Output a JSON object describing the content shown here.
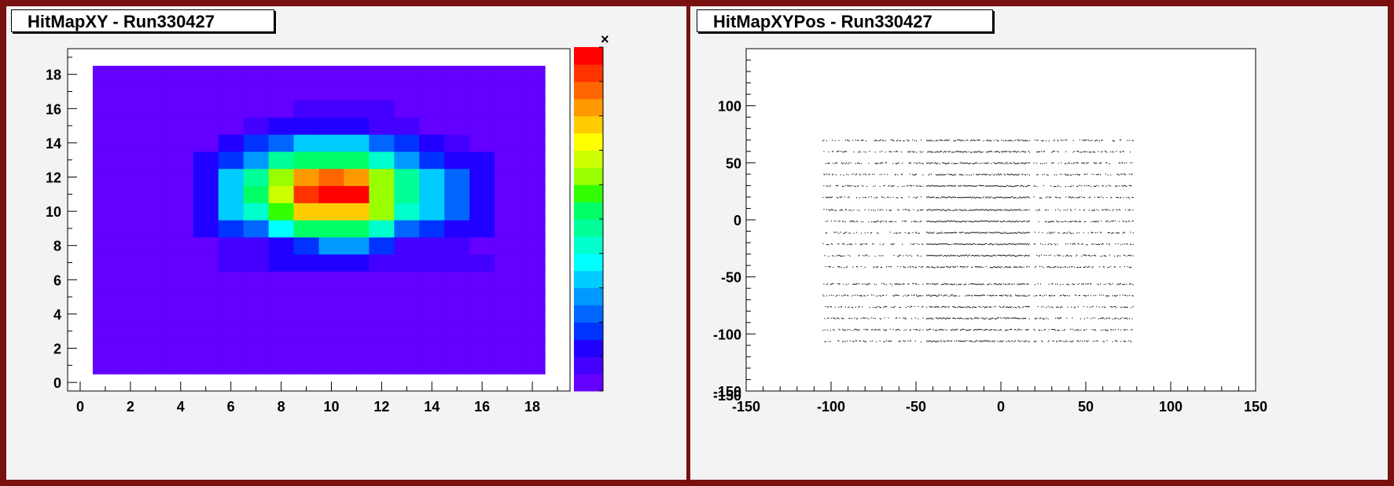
{
  "chart_data": [
    {
      "type": "heatmap",
      "title": "HitMapXY - Run330427",
      "xlim": [
        -0.5,
        19.5
      ],
      "ylim": [
        -0.5,
        19.5
      ],
      "x_ticks": [
        0,
        2,
        4,
        6,
        8,
        10,
        12,
        14,
        16,
        18
      ],
      "y_ticks": [
        0,
        2,
        4,
        6,
        8,
        10,
        12,
        14,
        16,
        18
      ],
      "x_bins": [
        1,
        18
      ],
      "y_bins": [
        1,
        18
      ],
      "grid": false,
      "legend": "color palette on right, labels clipped",
      "palette": [
        "#6300ff",
        "#4400ff",
        "#2200ff",
        "#0033ff",
        "#0066ff",
        "#0099ff",
        "#00ccff",
        "#00ffff",
        "#00ffcc",
        "#00ff99",
        "#00ff66",
        "#33ff00",
        "#99ff00",
        "#ccff00",
        "#ffff00",
        "#ffcc00",
        "#ff9900",
        "#ff6600",
        "#ff3300",
        "#ff0000"
      ],
      "z_levels": 20,
      "z_values": [
        [
          0,
          0,
          0,
          0,
          0,
          0,
          0,
          0,
          0,
          0,
          0,
          0,
          0,
          0,
          0,
          0,
          0,
          0
        ],
        [
          0,
          0,
          0,
          0,
          0,
          0,
          0,
          0,
          0,
          0,
          0,
          0,
          0,
          0,
          0,
          0,
          0,
          0
        ],
        [
          0,
          0,
          0,
          0,
          0,
          0,
          0,
          0,
          0,
          0,
          0,
          0,
          0,
          0,
          0,
          0,
          0,
          0
        ],
        [
          0,
          0,
          0,
          0,
          0,
          0,
          0,
          0,
          0,
          0,
          0,
          0,
          0,
          0,
          0,
          0,
          0,
          0
        ],
        [
          0,
          0,
          0,
          0,
          0,
          0,
          0,
          0,
          0,
          0,
          0,
          0,
          0,
          0,
          0,
          0,
          0,
          0
        ],
        [
          0,
          0,
          0,
          0,
          0,
          0,
          0,
          0,
          0,
          0,
          0,
          0,
          0,
          0,
          0,
          0,
          0,
          0
        ],
        [
          0,
          0,
          0,
          0,
          0,
          1,
          1,
          2,
          2,
          2,
          2,
          1,
          1,
          1,
          1,
          1,
          0,
          0
        ],
        [
          0,
          0,
          0,
          0,
          0,
          1,
          1,
          2,
          3,
          5,
          5,
          3,
          1,
          1,
          1,
          0,
          0,
          0
        ],
        [
          0,
          0,
          0,
          0,
          2,
          3,
          4,
          7,
          10,
          10,
          10,
          8,
          4,
          3,
          2,
          2,
          0,
          0
        ],
        [
          0,
          0,
          0,
          0,
          2,
          6,
          8,
          11,
          15,
          15,
          15,
          12,
          8,
          6,
          4,
          2,
          0,
          0
        ],
        [
          0,
          0,
          0,
          0,
          2,
          6,
          10,
          13,
          18,
          19,
          19,
          12,
          9,
          6,
          4,
          2,
          0,
          0
        ],
        [
          0,
          0,
          0,
          0,
          2,
          6,
          9,
          12,
          16,
          17,
          16,
          12,
          9,
          6,
          4,
          2,
          0,
          0
        ],
        [
          0,
          0,
          0,
          0,
          2,
          3,
          5,
          9,
          10,
          10,
          10,
          8,
          5,
          3,
          2,
          2,
          0,
          0
        ],
        [
          0,
          0,
          0,
          0,
          0,
          2,
          3,
          4,
          6,
          6,
          6,
          4,
          3,
          2,
          1,
          0,
          0,
          0
        ],
        [
          0,
          0,
          0,
          0,
          0,
          0,
          1,
          2,
          2,
          2,
          2,
          1,
          1,
          0,
          0,
          0,
          0,
          0
        ],
        [
          0,
          0,
          0,
          0,
          0,
          0,
          0,
          0,
          1,
          1,
          1,
          1,
          0,
          0,
          0,
          0,
          0,
          0
        ],
        [
          0,
          0,
          0,
          0,
          0,
          0,
          0,
          0,
          0,
          0,
          0,
          0,
          0,
          0,
          0,
          0,
          0,
          0
        ],
        [
          0,
          0,
          0,
          0,
          0,
          0,
          0,
          0,
          0,
          0,
          0,
          0,
          0,
          0,
          0,
          0,
          0,
          0
        ]
      ]
    },
    {
      "type": "scatter",
      "title": "HitMapXYPos - Run330427",
      "xlim": [
        -150,
        150
      ],
      "ylim": [
        -150,
        150
      ],
      "x_ticks": [
        -150,
        -100,
        -50,
        0,
        50,
        100,
        150
      ],
      "y_ticks": [
        -150,
        -100,
        -50,
        0,
        50,
        100
      ],
      "grid": false,
      "color": "#000000",
      "hit_region": {
        "x": [
          -105,
          78
        ],
        "y": [
          -105,
          70
        ]
      },
      "row_y": [
        70,
        60,
        50,
        40,
        30,
        20,
        9,
        -1,
        -11,
        -21,
        -31,
        -41,
        -56,
        -66,
        -76,
        -86,
        -96,
        -106
      ],
      "x_gaps": [
        [
          -46,
          -44
        ],
        [
          17,
          19
        ]
      ]
    }
  ]
}
